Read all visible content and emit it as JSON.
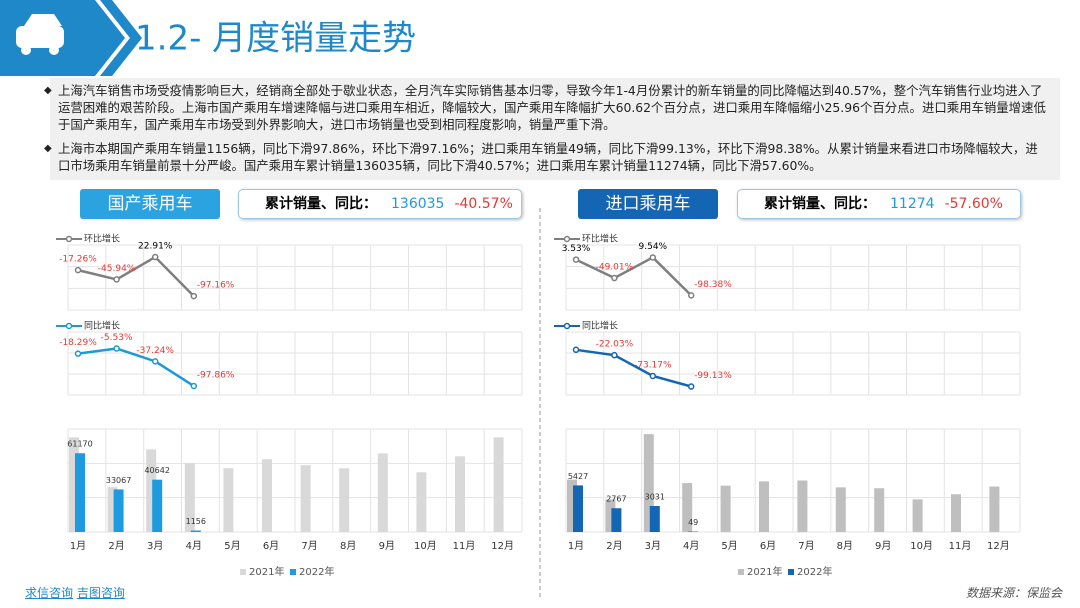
{
  "header": {
    "title": "1.2- 月度销量走势"
  },
  "bullets": [
    "上海汽车销售市场受疫情影响巨大，经销商全部处于歇业状态，全月汽车实际销售基本归零，导致今年1-4月份累计的新车销量的同比降幅达到40.57%，整个汽车销售行业均进入了运营困难的艰苦阶段。上海市国产乘用车增速降幅与进口乘用车相近，降幅较大，国产乘用车降幅扩大60.62个百分点，进口乘用车降幅缩小25.96个百分点。进口乘用车销量增速低于国产乘用车，国产乘用车市场受到外界影响大，进口市场销量也受到相同程度影响，销量严重下滑。",
    "上海市本期国产乘用车销量1156辆，同比下滑97.86%，环比下滑97.16%；进口乘用车销量49辆，同比下滑99.13%，环比下滑98.38%。从累计销量来看进口市场降幅较大，进口市场乘用车销量前景十分严峻。国产乘用车累计销量136035辆，同比下滑40.57%；进口乘用车累计销量11274辆，同比下滑57.60%。"
  ],
  "panels": [
    {
      "name": "国产乘用车",
      "label": "累计销量、同比：",
      "total": "136035",
      "change": "-40.57%"
    },
    {
      "name": "进口乘用车",
      "label": "累计销量、同比：",
      "total": "11274",
      "change": "-57.60%"
    }
  ],
  "chart_data": [
    {
      "type": "line",
      "ylim": [
        -140,
        60
      ],
      "series": [
        {
          "name": "环比增长",
          "color": "#7f7f7f",
          "values": [
            -17.26,
            -45.94,
            22.91,
            -97.16
          ],
          "value_labels": [
            "-17.26%",
            "-45.94%",
            "22.91%",
            "-97.16%"
          ]
        }
      ]
    },
    {
      "type": "line",
      "ylim": [
        -120,
        35
      ],
      "series": [
        {
          "name": "同比增长",
          "color": "#1a9ad6",
          "values": [
            -18.29,
            -5.53,
            -37.24,
            -97.86
          ],
          "value_labels": [
            "-18.29%",
            "-5.53%",
            "-37.24%",
            "-97.86%"
          ]
        }
      ]
    },
    {
      "type": "bar",
      "ylim": [
        0,
        80000
      ],
      "categories": [
        "1月",
        "2月",
        "3月",
        "4月",
        "5月",
        "6月",
        "7月",
        "8月",
        "9月",
        "10月",
        "11月",
        "12月"
      ],
      "series": [
        {
          "name": "2021年",
          "color": "#d9d9d9",
          "values": [
            73500,
            34800,
            64200,
            53400,
            49500,
            56500,
            51900,
            49500,
            61100,
            46400,
            58800,
            73500
          ]
        },
        {
          "name": "2022年",
          "color": "#1e9be0",
          "values": [
            61170,
            33067,
            40642,
            1156,
            null,
            null,
            null,
            null,
            null,
            null,
            null,
            null
          ]
        }
      ]
    },
    {
      "type": "line",
      "ylim": [
        -140,
        45
      ],
      "series": [
        {
          "name": "环比增长",
          "color": "#7f7f7f",
          "values": [
            3.53,
            -49.01,
            9.54,
            -98.38
          ],
          "value_labels": [
            "3.53%",
            "-49.01%",
            "9.54%",
            "-98.38%"
          ]
        }
      ]
    },
    {
      "type": "line",
      "ylim": [
        -120,
        35
      ],
      "series": [
        {
          "name": "同比增长",
          "color": "#1565b5",
          "values": [
            -8.8,
            -22.03,
            -73.17,
            -99.13
          ],
          "value_labels": [
            null,
            "-22.03%",
            "-73.17%",
            "-99.13%"
          ]
        }
      ]
    },
    {
      "type": "bar",
      "ylim": [
        0,
        12000
      ],
      "categories": [
        "1月",
        "2月",
        "3月",
        "4月",
        "5月",
        "6月",
        "7月",
        "8月",
        "9月",
        "10月",
        "11月",
        "12月"
      ],
      "series": [
        {
          "name": "2021年",
          "color": "#bfbfbf",
          "values": [
            6100,
            3800,
            11400,
            5700,
            5400,
            5900,
            6000,
            5200,
            5100,
            3800,
            4400,
            5300
          ]
        },
        {
          "name": "2022年",
          "color": "#1565b5",
          "values": [
            5427,
            2767,
            3031,
            49,
            null,
            null,
            null,
            null,
            null,
            null,
            null,
            null
          ]
        }
      ]
    }
  ],
  "footer": {
    "links": [
      "求信咨询",
      "吉图咨询"
    ],
    "source": "数据来源：保监会"
  }
}
